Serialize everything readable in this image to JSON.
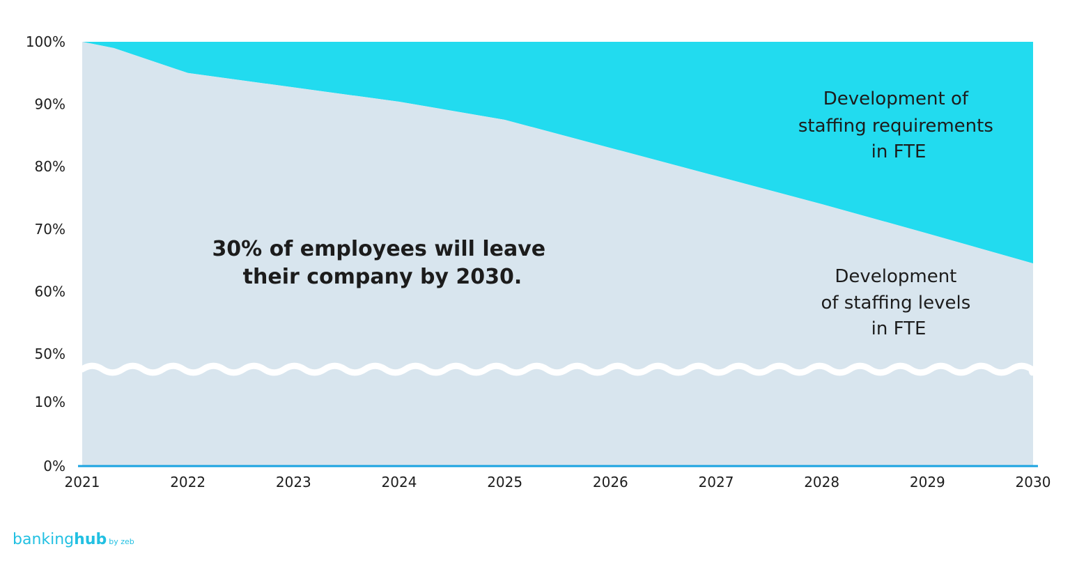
{
  "chart_data": {
    "type": "area",
    "x": [
      2021,
      2021.3,
      2022,
      2023,
      2024,
      2025,
      2026,
      2027,
      2028,
      2029,
      2030
    ],
    "x_ticks": [
      "2021",
      "2022",
      "2023",
      "2024",
      "2025",
      "2026",
      "2027",
      "2028",
      "2029",
      "2030"
    ],
    "y_ticks": [
      "0%",
      "10%",
      "50%",
      "60%",
      "70%",
      "80%",
      "90%",
      "100%"
    ],
    "y_axis_break": [
      10,
      50
    ],
    "series": [
      {
        "name": "Development of staffing levels in FTE",
        "values": [
          100,
          99,
          95,
          92.7,
          90.4,
          87.5,
          83,
          78.5,
          74,
          69.3,
          64.5
        ]
      },
      {
        "name": "Development of staffing requirements in FTE",
        "values": [
          100,
          100,
          100,
          100,
          100,
          100,
          100,
          100,
          100,
          100,
          100
        ]
      }
    ],
    "colors": {
      "staffing_levels": "#d8e5ee",
      "staffing_requirements": "#22dbef",
      "axis": "#1aa3e0",
      "text": "#1c1c1c"
    },
    "annotations": {
      "headline": [
        "30% of employees will leave",
        "their company by 2030."
      ],
      "requirements_label": [
        "Development of",
        "staffing requirements",
        "in FTE"
      ],
      "levels_label": [
        "Development",
        "of staffing levels",
        "in FTE"
      ]
    },
    "ylim": [
      0,
      100
    ]
  },
  "logo": {
    "word1": "banking",
    "word2": "hub",
    "suffix": "by zeb"
  }
}
